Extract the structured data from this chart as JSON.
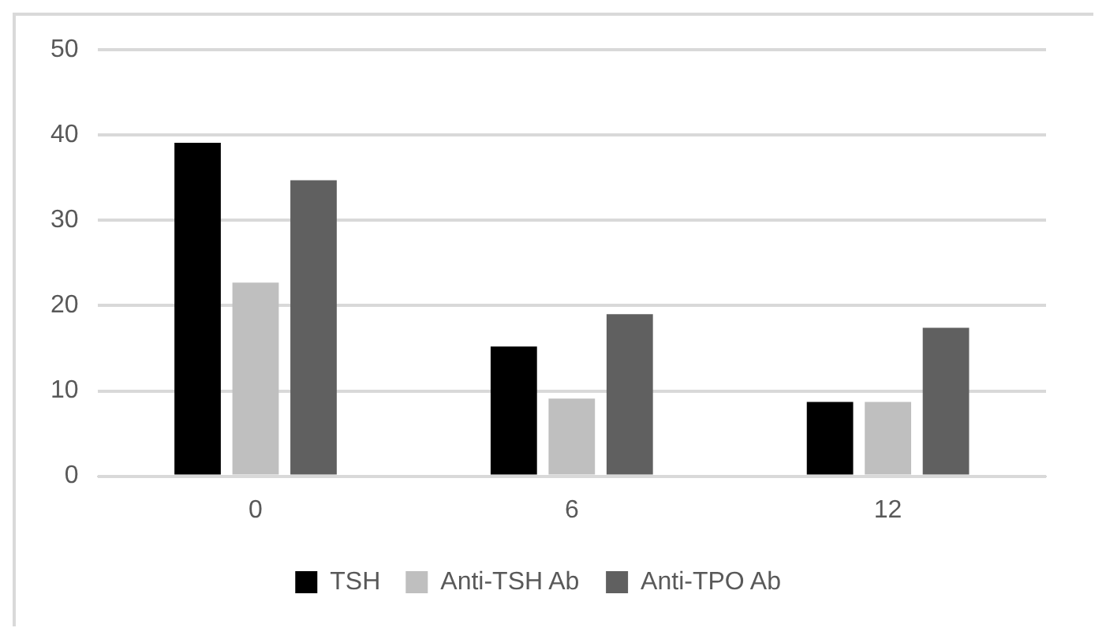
{
  "chart_data": {
    "type": "bar",
    "categories": [
      "0",
      "6",
      "12"
    ],
    "series": [
      {
        "name": "TSH",
        "color": "#000000",
        "values": [
          39.1,
          15.2,
          8.7
        ]
      },
      {
        "name": "Anti-TSH Ab",
        "color": "#bfbfbf",
        "values": [
          22.7,
          9.1,
          8.7
        ]
      },
      {
        "name": "Anti-TPO Ab",
        "color": "#606060",
        "values": [
          34.7,
          19.0,
          17.4
        ]
      }
    ],
    "ylim": [
      0,
      50
    ],
    "yticks": [
      0,
      10,
      20,
      30,
      40,
      50
    ],
    "grid": "y",
    "legend": "bottom"
  }
}
